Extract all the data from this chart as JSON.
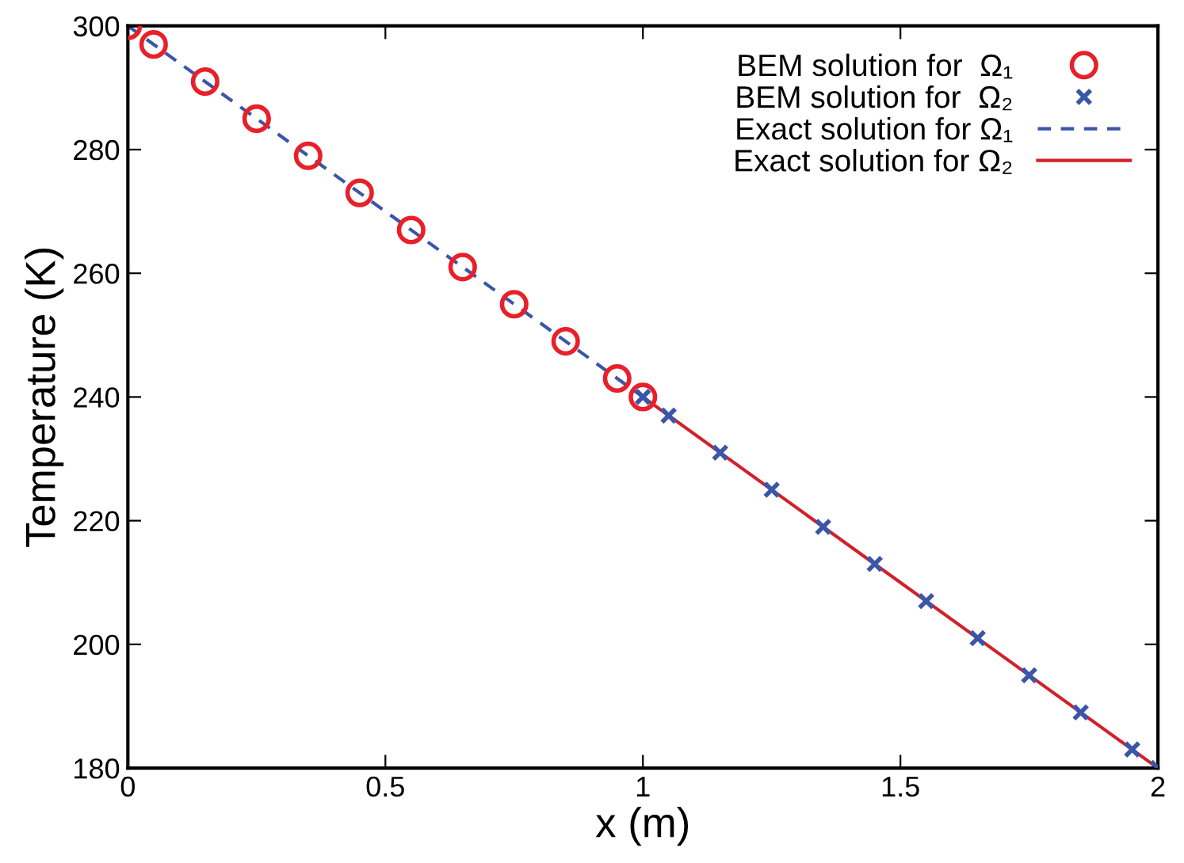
{
  "chart_data": {
    "type": "line",
    "xlabel": "x (m)",
    "ylabel": "Temperature (K)",
    "xlim": [
      0,
      2
    ],
    "ylim": [
      180,
      300
    ],
    "xticks": [
      0,
      0.5,
      1,
      1.5,
      2
    ],
    "yticks": [
      180,
      200,
      220,
      240,
      260,
      280,
      300
    ],
    "grid": false,
    "legend": "top right",
    "series": [
      {
        "name": "BEM solution for  Ω₁",
        "type": "scatter",
        "marker": "circle",
        "color": "#e8202a",
        "x": [
          0,
          0.05,
          0.15,
          0.25,
          0.35,
          0.45,
          0.55,
          0.65,
          0.75,
          0.85,
          0.95,
          1.0
        ],
        "values": [
          300,
          297,
          291,
          285,
          279,
          273,
          267,
          261,
          255,
          249,
          243,
          240
        ]
      },
      {
        "name": "BEM solution for  Ω₂",
        "type": "scatter",
        "marker": "cross",
        "color": "#3a56a8",
        "x": [
          1.0,
          1.05,
          1.15,
          1.25,
          1.35,
          1.45,
          1.55,
          1.65,
          1.75,
          1.85,
          1.95,
          2.0
        ],
        "values": [
          240,
          237,
          231,
          225,
          219,
          213,
          207,
          201,
          195,
          189,
          183,
          180
        ]
      },
      {
        "name": "Exact solution for Ω₁",
        "line_style": "dashed",
        "color": "#3a56a8",
        "x": [
          0,
          1
        ],
        "values": [
          300,
          240
        ]
      },
      {
        "name": "Exact solution for Ω₂",
        "line_style": "solid",
        "color": "#d4202a",
        "x": [
          1,
          2
        ],
        "values": [
          240,
          180
        ]
      }
    ]
  }
}
